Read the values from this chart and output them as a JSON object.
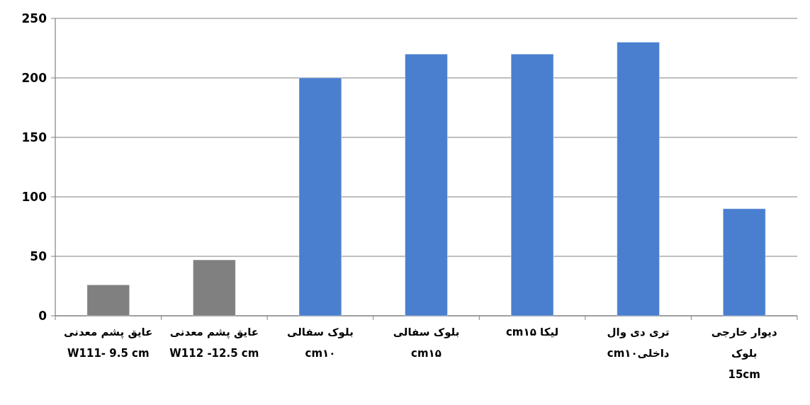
{
  "chart_data": {
    "type": "bar",
    "categories": [
      "عایق پشم معدنی\nW111- 9.5 cm",
      "عایق پشم معدنی\nW112 -12.5 cm",
      "بلوک سفالی\ncm۱۰",
      "بلوک سفالی\ncm۱۵",
      "لیکا cm۱۵",
      "تری دی وال\nداخلیcm۱۰",
      "دیوار خارجی\nبلوک\n15cm"
    ],
    "values": [
      26,
      47,
      200,
      220,
      220,
      230,
      90
    ],
    "colors": [
      "#808080",
      "#808080",
      "#4a7fd0",
      "#4a7fd0",
      "#4a7fd0",
      "#4a7fd0",
      "#4a7fd0"
    ],
    "ylim": [
      0,
      250
    ],
    "yticks": [
      0,
      50,
      100,
      150,
      200,
      250
    ],
    "grid": "y"
  }
}
